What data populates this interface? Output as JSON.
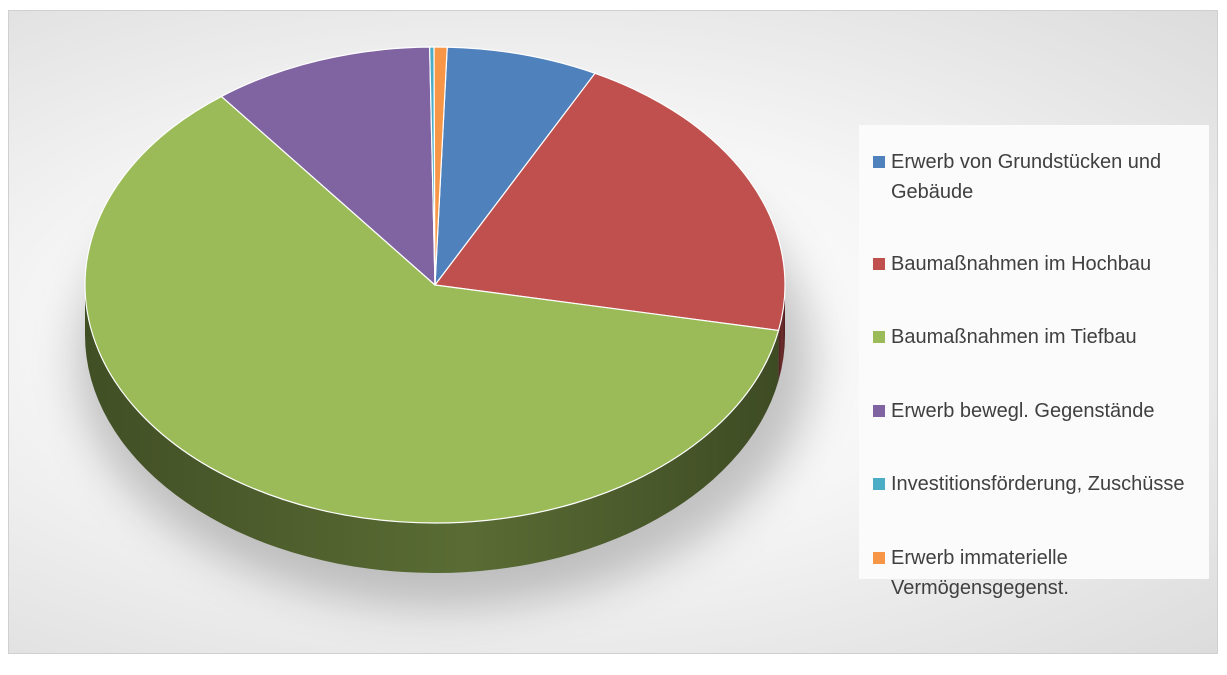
{
  "chart_data": {
    "type": "pie",
    "title": "",
    "style": "3d",
    "legend_position": "right",
    "slices": [
      {
        "label": "Erwerb von Grundstücken und Gebäude",
        "value": 7.0,
        "color": "#4f81bd"
      },
      {
        "label": "Baumaßnahmen im Hochbau",
        "value": 20.5,
        "color": "#c0504d"
      },
      {
        "label": "Baumaßnahmen im Tiefbau",
        "value": 61.5,
        "color": "#9bbb59"
      },
      {
        "label": "Erwerb bewegl. Gegenstände",
        "value": 10.2,
        "color": "#8064a2"
      },
      {
        "label": "Investitionsförderung, Zuschüsse",
        "value": 0.2,
        "color": "#4bacc6"
      },
      {
        "label": "Erwerb immaterielle Vermögensgegenst.",
        "value": 0.6,
        "color": "#f79646"
      }
    ]
  }
}
